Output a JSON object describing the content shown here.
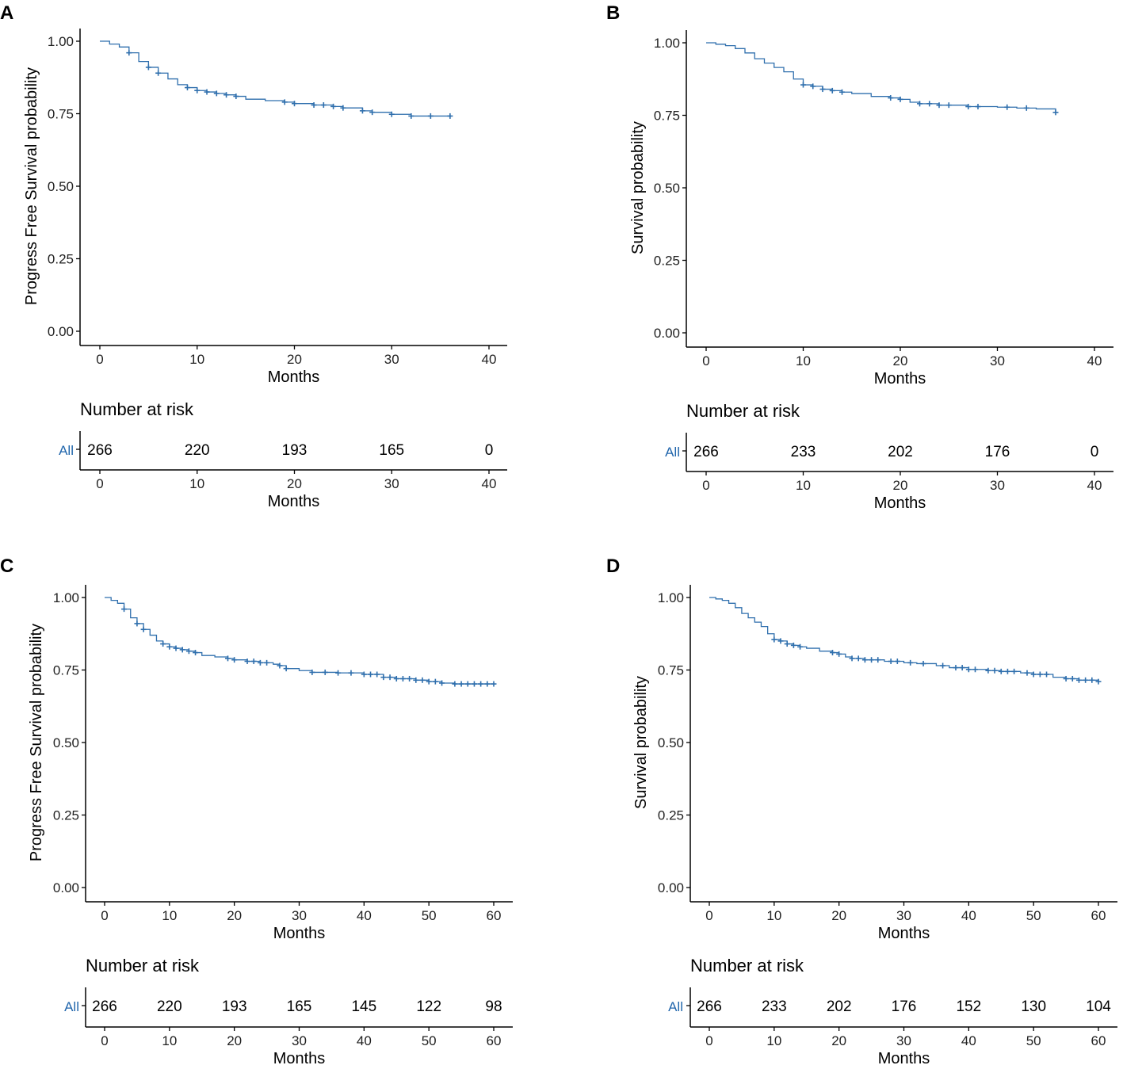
{
  "colors": {
    "curve": "#2f6fad",
    "strata_label": "#2166ac",
    "axis": "#000000"
  },
  "chart_data": [
    {
      "panel": "A",
      "type": "line",
      "title": "",
      "xlabel": "Months",
      "ylabel": "Progress Free Survival probability",
      "xlim": [
        0,
        40
      ],
      "ylim": [
        0,
        1
      ],
      "xticks": [
        "0",
        "10",
        "20",
        "30",
        "40"
      ],
      "yticks": [
        "0.00",
        "0.25",
        "0.50",
        "0.75",
        "1.00"
      ],
      "series": [
        {
          "name": "All",
          "x": [
            0,
            1,
            2,
            3,
            4,
            5,
            6,
            7,
            8,
            9,
            10,
            11,
            12,
            13,
            14,
            15,
            17,
            19,
            20,
            22,
            24,
            25,
            27,
            28,
            30,
            32,
            36
          ],
          "y": [
            1.0,
            0.99,
            0.98,
            0.96,
            0.93,
            0.91,
            0.89,
            0.87,
            0.85,
            0.84,
            0.83,
            0.825,
            0.82,
            0.815,
            0.81,
            0.8,
            0.795,
            0.79,
            0.785,
            0.78,
            0.775,
            0.77,
            0.76,
            0.755,
            0.748,
            0.742,
            0.742
          ]
        }
      ],
      "censor_x": [
        3,
        5,
        6,
        9,
        10,
        11,
        12,
        13,
        14,
        19,
        20,
        22,
        23,
        24,
        25,
        27,
        28,
        30,
        32,
        34,
        36
      ],
      "risk_table": {
        "title": "Number at risk",
        "strata": "All",
        "times": [
          0,
          10,
          20,
          30,
          40
        ],
        "values": [
          "266",
          "220",
          "193",
          "165",
          "0"
        ],
        "xlabel": "Months",
        "xticks": [
          "0",
          "10",
          "20",
          "30",
          "40"
        ]
      }
    },
    {
      "panel": "B",
      "type": "line",
      "title": "",
      "xlabel": "Months",
      "ylabel": "Survival probability",
      "xlim": [
        0,
        40
      ],
      "ylim": [
        0,
        1
      ],
      "xticks": [
        "0",
        "10",
        "20",
        "30",
        "40"
      ],
      "yticks": [
        "0.00",
        "0.25",
        "0.50",
        "0.75",
        "1.00"
      ],
      "series": [
        {
          "name": "All",
          "x": [
            0,
            1,
            2,
            3,
            4,
            5,
            6,
            7,
            8,
            9,
            10,
            11,
            12,
            13,
            14,
            15,
            17,
            19,
            20,
            21,
            22,
            24,
            27,
            30,
            32,
            34,
            36
          ],
          "y": [
            1.0,
            0.995,
            0.99,
            0.98,
            0.965,
            0.945,
            0.93,
            0.915,
            0.9,
            0.875,
            0.855,
            0.85,
            0.84,
            0.835,
            0.83,
            0.825,
            0.815,
            0.81,
            0.805,
            0.795,
            0.79,
            0.785,
            0.78,
            0.778,
            0.775,
            0.772,
            0.76
          ]
        }
      ],
      "censor_x": [
        10,
        11,
        12,
        13,
        14,
        19,
        20,
        22,
        23,
        24,
        25,
        27,
        28,
        31,
        33,
        36
      ],
      "risk_table": {
        "title": "Number at risk",
        "strata": "All",
        "times": [
          0,
          10,
          20,
          30,
          40
        ],
        "values": [
          "266",
          "233",
          "202",
          "176",
          "0"
        ],
        "xlabel": "Months",
        "xticks": [
          "0",
          "10",
          "20",
          "30",
          "40"
        ]
      }
    },
    {
      "panel": "C",
      "type": "line",
      "title": "",
      "xlabel": "Months",
      "ylabel": "Progress Free Survival probability",
      "xlim": [
        0,
        60
      ],
      "ylim": [
        0,
        1
      ],
      "xticks": [
        "0",
        "10",
        "20",
        "30",
        "40",
        "50",
        "60"
      ],
      "yticks": [
        "0.00",
        "0.25",
        "0.50",
        "0.75",
        "1.00"
      ],
      "series": [
        {
          "name": "All",
          "x": [
            0,
            1,
            2,
            3,
            4,
            5,
            6,
            7,
            8,
            9,
            10,
            11,
            12,
            13,
            14,
            15,
            17,
            19,
            20,
            22,
            24,
            26,
            27,
            28,
            30,
            32,
            36,
            40,
            43,
            45,
            48,
            50,
            52,
            54,
            60
          ],
          "y": [
            1.0,
            0.99,
            0.98,
            0.96,
            0.93,
            0.91,
            0.89,
            0.87,
            0.85,
            0.84,
            0.83,
            0.825,
            0.82,
            0.815,
            0.81,
            0.8,
            0.795,
            0.79,
            0.785,
            0.78,
            0.775,
            0.77,
            0.765,
            0.755,
            0.748,
            0.742,
            0.74,
            0.735,
            0.725,
            0.72,
            0.715,
            0.71,
            0.705,
            0.702,
            0.702
          ]
        }
      ],
      "censor_x": [
        3,
        5,
        6,
        9,
        10,
        11,
        12,
        13,
        14,
        19,
        20,
        22,
        23,
        24,
        25,
        27,
        28,
        32,
        34,
        36,
        38,
        40,
        41,
        42,
        43,
        44,
        45,
        46,
        47,
        48,
        49,
        50,
        51,
        52,
        54,
        55,
        56,
        57,
        58,
        59,
        60
      ],
      "risk_table": {
        "title": "Number at risk",
        "strata": "All",
        "times": [
          0,
          10,
          20,
          30,
          40,
          50,
          60
        ],
        "values": [
          "266",
          "220",
          "193",
          "165",
          "145",
          "122",
          "98"
        ],
        "xlabel": "Months",
        "xticks": [
          "0",
          "10",
          "20",
          "30",
          "40",
          "50",
          "60"
        ]
      }
    },
    {
      "panel": "D",
      "type": "line",
      "title": "",
      "xlabel": "Months",
      "ylabel": "Survival probability",
      "xlim": [
        0,
        60
      ],
      "ylim": [
        0,
        1
      ],
      "xticks": [
        "0",
        "10",
        "20",
        "30",
        "40",
        "50",
        "60"
      ],
      "yticks": [
        "0.00",
        "0.25",
        "0.50",
        "0.75",
        "1.00"
      ],
      "series": [
        {
          "name": "All",
          "x": [
            0,
            1,
            2,
            3,
            4,
            5,
            6,
            7,
            8,
            9,
            10,
            11,
            12,
            13,
            14,
            15,
            17,
            19,
            20,
            21,
            22,
            24,
            27,
            30,
            32,
            35,
            37,
            40,
            43,
            45,
            48,
            50,
            53,
            55,
            57,
            60
          ],
          "y": [
            1.0,
            0.995,
            0.99,
            0.98,
            0.965,
            0.945,
            0.93,
            0.915,
            0.9,
            0.875,
            0.855,
            0.85,
            0.84,
            0.835,
            0.83,
            0.825,
            0.815,
            0.81,
            0.805,
            0.795,
            0.79,
            0.785,
            0.78,
            0.775,
            0.772,
            0.765,
            0.758,
            0.752,
            0.748,
            0.745,
            0.74,
            0.735,
            0.725,
            0.72,
            0.715,
            0.71
          ]
        }
      ],
      "censor_x": [
        10,
        11,
        12,
        13,
        14,
        19,
        20,
        22,
        23,
        24,
        25,
        26,
        28,
        29,
        31,
        33,
        36,
        38,
        39,
        40,
        41,
        43,
        44,
        45,
        46,
        47,
        49,
        50,
        51,
        52,
        55,
        56,
        57,
        58,
        59,
        60
      ],
      "risk_table": {
        "title": "Number at risk",
        "strata": "All",
        "times": [
          0,
          10,
          20,
          30,
          40,
          50,
          60
        ],
        "values": [
          "266",
          "233",
          "202",
          "176",
          "152",
          "130",
          "104"
        ],
        "xlabel": "Months",
        "xticks": [
          "0",
          "10",
          "20",
          "30",
          "40",
          "50",
          "60"
        ]
      }
    }
  ]
}
